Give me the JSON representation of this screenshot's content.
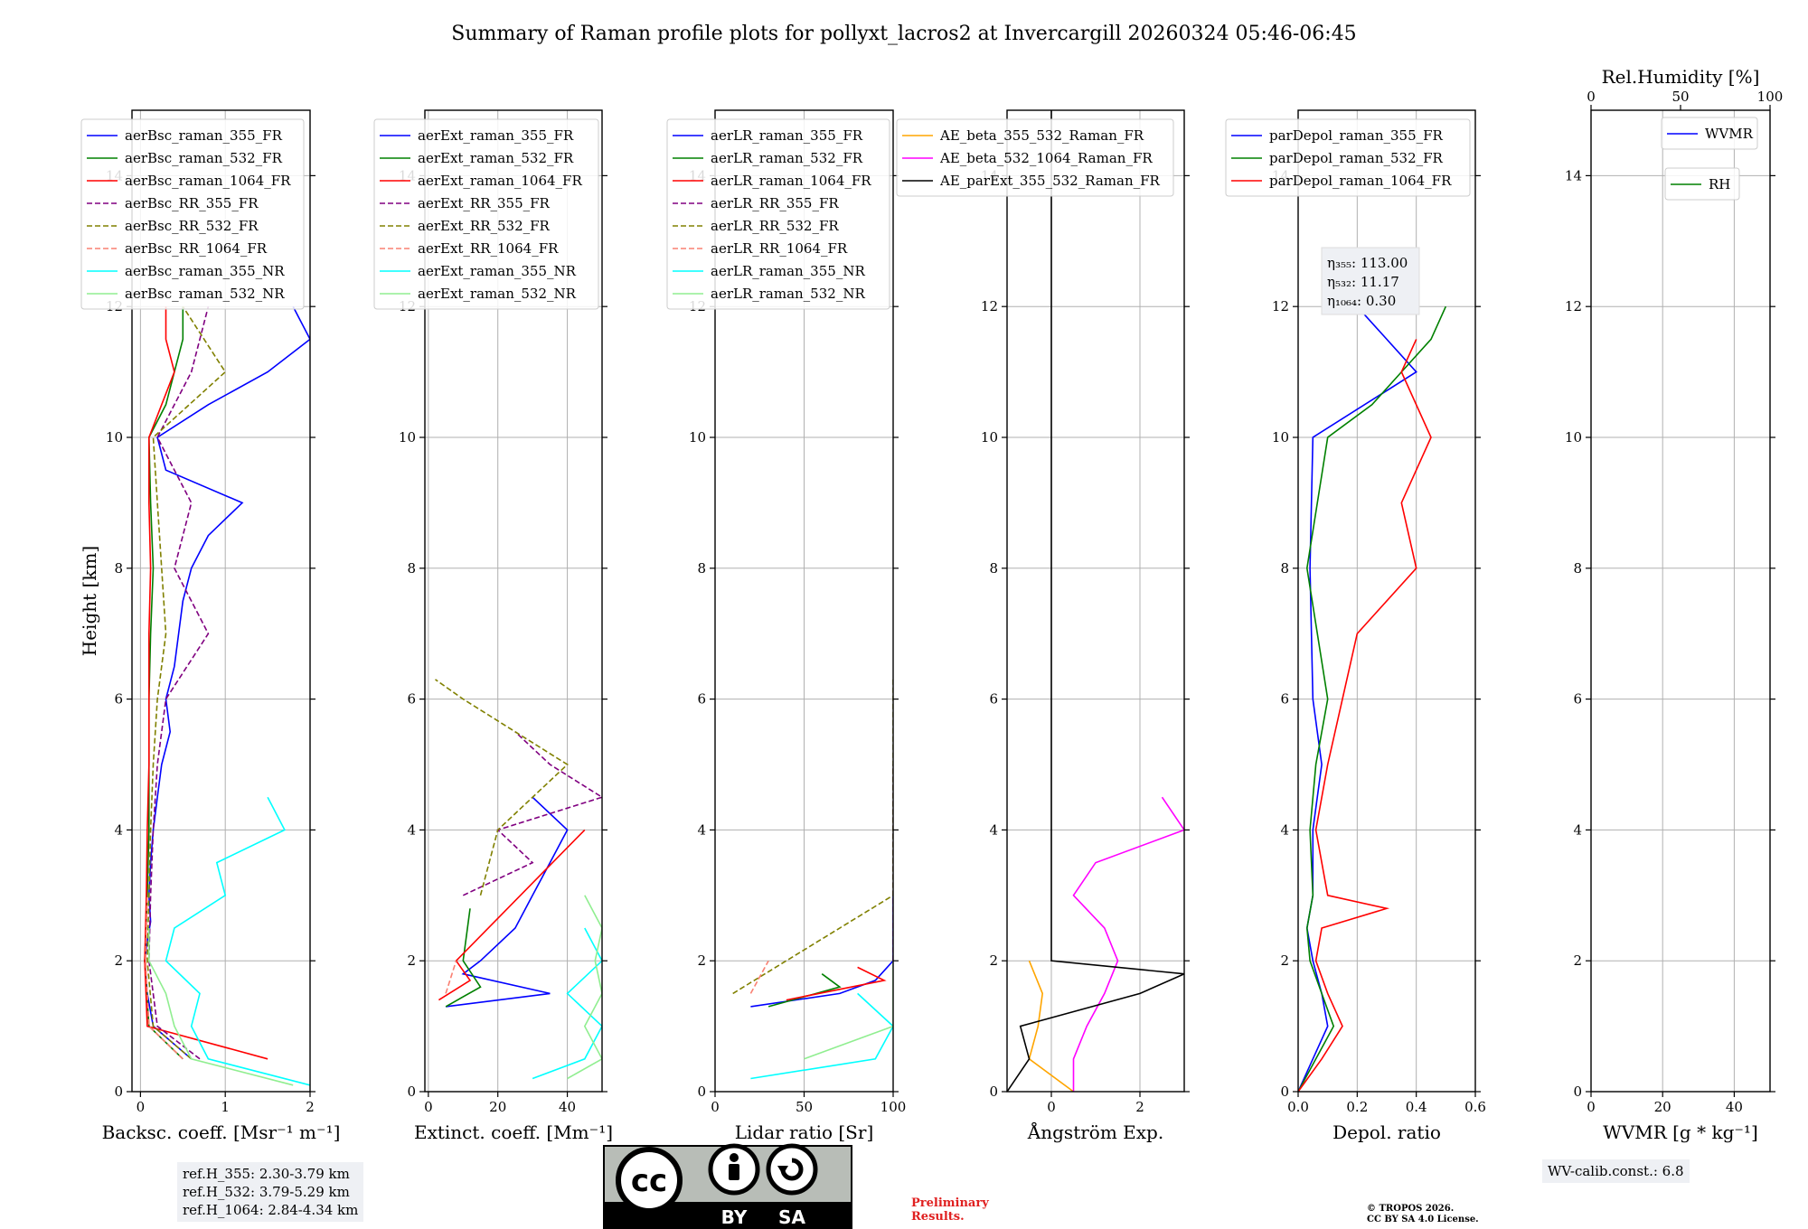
{
  "title": "Summary of Raman profile plots for pollyxt_lacros2 at Invercargill 20260324 05:46-06:45",
  "chart_data": [
    {
      "type": "line",
      "id": "bsc",
      "xlabel": "Backsc. coeff. [Msr⁻¹ m⁻¹]",
      "ylabel": "Height [km]",
      "xlim": [
        -0.1,
        2
      ],
      "ylim": [
        0,
        15
      ],
      "xticks": [
        0,
        1,
        2
      ],
      "yticks": [
        0,
        2,
        4,
        6,
        8,
        10,
        12,
        14
      ],
      "grid": true,
      "legend": [
        "aerBsc_raman_355_FR",
        "aerBsc_raman_532_FR",
        "aerBsc_raman_1064_FR",
        "aerBsc_RR_355_FR",
        "aerBsc_RR_532_FR",
        "aerBsc_RR_1064_FR",
        "aerBsc_raman_355_NR",
        "aerBsc_raman_532_NR"
      ],
      "series": [
        {
          "name": "aerBsc_raman_355_FR",
          "color": "#0000ff",
          "dash": "",
          "h": [
            0.5,
            1.0,
            1.5,
            2.0,
            2.3,
            2.6,
            3.0,
            3.5,
            4.0,
            4.5,
            5.0,
            5.5,
            6.0,
            6.5,
            7.0,
            7.5,
            8.0,
            8.5,
            9.0,
            9.5,
            10.0,
            10.5,
            11.0,
            11.5,
            12.0
          ],
          "v": [
            0.6,
            0.15,
            0.08,
            0.05,
            0.08,
            0.12,
            0.1,
            0.12,
            0.15,
            0.2,
            0.25,
            0.35,
            0.3,
            0.4,
            0.45,
            0.5,
            0.6,
            0.8,
            1.2,
            0.3,
            0.2,
            0.8,
            1.5,
            2.0,
            1.8
          ]
        },
        {
          "name": "aerBsc_raman_532_FR",
          "color": "#008000",
          "dash": "",
          "h": [
            0.5,
            1.0,
            2.0,
            3.0,
            4.0,
            5.0,
            6.0,
            7.0,
            8.0,
            9.0,
            10.0,
            10.5,
            11.0,
            11.5,
            12.0
          ],
          "v": [
            0.5,
            0.1,
            0.05,
            0.08,
            0.1,
            0.1,
            0.1,
            0.12,
            0.15,
            0.12,
            0.1,
            0.3,
            0.4,
            0.5,
            0.5
          ]
        },
        {
          "name": "aerBsc_raman_1064_FR",
          "color": "#ff0000",
          "dash": "",
          "h": [
            0.5,
            1.0,
            2.0,
            3.0,
            4.0,
            5.0,
            6.0,
            7.0,
            8.0,
            9.0,
            10.0,
            10.5,
            11.0,
            11.5,
            12.0
          ],
          "v": [
            1.5,
            0.08,
            0.05,
            0.07,
            0.08,
            0.1,
            0.1,
            0.1,
            0.12,
            0.1,
            0.1,
            0.25,
            0.4,
            0.3,
            0.3
          ]
        },
        {
          "name": "aerBsc_RR_355_FR",
          "color": "#800080",
          "dash": "6,3",
          "h": [
            0.5,
            1.0,
            2.0,
            3.0,
            4.0,
            5.0,
            6.0,
            7.0,
            8.0,
            9.0,
            10.0,
            11.0,
            12.0
          ],
          "v": [
            0.7,
            0.2,
            0.1,
            0.12,
            0.15,
            0.2,
            0.3,
            0.8,
            0.4,
            0.6,
            0.2,
            0.6,
            0.8
          ]
        },
        {
          "name": "aerBsc_RR_532_FR",
          "color": "#808000",
          "dash": "6,3",
          "h": [
            0.5,
            1.0,
            2.0,
            3.0,
            4.0,
            5.0,
            6.0,
            7.0,
            8.0,
            9.0,
            10.0,
            11.0,
            12.0
          ],
          "v": [
            0.6,
            0.15,
            0.08,
            0.1,
            0.12,
            0.15,
            0.2,
            0.3,
            0.25,
            0.2,
            0.15,
            1.0,
            0.5
          ]
        },
        {
          "name": "aerBsc_RR_1064_FR",
          "color": "#fa8072",
          "dash": "6,3",
          "h": [
            0.5,
            1.0,
            2.0,
            3.0
          ],
          "v": [
            0.5,
            0.1,
            0.06,
            0.08
          ]
        },
        {
          "name": "aerBsc_raman_355_NR",
          "color": "#00ffff",
          "dash": "",
          "h": [
            0.1,
            0.5,
            1.0,
            1.5,
            2.0,
            2.5,
            3.0,
            3.5,
            4.0,
            4.5
          ],
          "v": [
            2.0,
            0.8,
            0.6,
            0.7,
            0.3,
            0.4,
            1.0,
            0.9,
            1.7,
            1.5
          ]
        },
        {
          "name": "aerBsc_raman_532_NR",
          "color": "#90ee90",
          "dash": "",
          "h": [
            0.1,
            0.5,
            1.0,
            1.5,
            2.0,
            2.5
          ],
          "v": [
            1.8,
            0.6,
            0.4,
            0.3,
            0.1,
            0.1
          ]
        }
      ]
    },
    {
      "type": "line",
      "id": "ext",
      "xlabel": "Extinct. coeff. [Mm⁻¹]",
      "xlim": [
        -1,
        50
      ],
      "ylim": [
        0,
        15
      ],
      "xticks": [
        0,
        20,
        40
      ],
      "yticks": [
        0,
        2,
        4,
        6,
        8,
        10,
        12,
        14
      ],
      "grid": true,
      "legend": [
        "aerExt_raman_355_FR",
        "aerExt_raman_532_FR",
        "aerExt_raman_1064_FR",
        "aerExt_RR_355_FR",
        "aerExt_RR_532_FR",
        "aerExt_RR_1064_FR",
        "aerExt_raman_355_NR",
        "aerExt_raman_532_NR"
      ],
      "series": [
        {
          "name": "aerExt_raman_355_FR",
          "color": "#0000ff",
          "dash": "",
          "h": [
            1.3,
            1.5,
            1.8,
            2.0,
            2.5,
            3.0,
            3.5,
            4.0,
            4.5
          ],
          "v": [
            5,
            35,
            10,
            15,
            25,
            30,
            35,
            40,
            30
          ]
        },
        {
          "name": "aerExt_raman_532_FR",
          "color": "#008000",
          "dash": "",
          "h": [
            1.3,
            1.6,
            2.0,
            2.8
          ],
          "v": [
            5,
            15,
            10,
            12
          ]
        },
        {
          "name": "aerExt_raman_1064_FR",
          "color": "#ff0000",
          "dash": "",
          "h": [
            1.4,
            1.7,
            2.0,
            4.0
          ],
          "v": [
            3,
            12,
            8,
            45
          ]
        },
        {
          "name": "aerExt_RR_355_FR",
          "color": "#800080",
          "dash": "6,3",
          "h": [
            3.0,
            3.5,
            4.0,
            4.5,
            5.0,
            5.5
          ],
          "v": [
            10,
            30,
            20,
            50,
            35,
            25
          ]
        },
        {
          "name": "aerExt_RR_532_FR",
          "color": "#808000",
          "dash": "6,3",
          "h": [
            3.0,
            4.0,
            5.0,
            6.0,
            6.3
          ],
          "v": [
            15,
            20,
            40,
            10,
            2
          ]
        },
        {
          "name": "aerExt_RR_1064_FR",
          "color": "#fa8072",
          "dash": "6,3",
          "h": [
            1.5,
            2.0
          ],
          "v": [
            5,
            8
          ]
        },
        {
          "name": "aerExt_raman_355_NR",
          "color": "#00ffff",
          "dash": "",
          "h": [
            0.2,
            0.5,
            1.0,
            1.5,
            2.0,
            2.5
          ],
          "v": [
            30,
            45,
            50,
            40,
            50,
            45
          ]
        },
        {
          "name": "aerExt_raman_532_NR",
          "color": "#90ee90",
          "dash": "",
          "h": [
            0.2,
            0.5,
            1.0,
            1.5,
            2.0,
            2.5,
            3.0
          ],
          "v": [
            40,
            50,
            45,
            50,
            48,
            50,
            45
          ]
        }
      ]
    },
    {
      "type": "line",
      "id": "lr",
      "xlabel": "Lidar ratio [Sr]",
      "xlim": [
        0,
        100
      ],
      "ylim": [
        0,
        15
      ],
      "xticks": [
        0,
        50,
        100
      ],
      "yticks": [
        0,
        2,
        4,
        6,
        8,
        10,
        12,
        14
      ],
      "grid": true,
      "legend": [
        "aerLR_raman_355_FR",
        "aerLR_raman_532_FR",
        "aerLR_raman_1064_FR",
        "aerLR_RR_355_FR",
        "aerLR_RR_532_FR",
        "aerLR_RR_1064_FR",
        "aerLR_raman_355_NR",
        "aerLR_raman_532_NR"
      ],
      "series": [
        {
          "name": "aerLR_raman_355_FR",
          "color": "#0000ff",
          "dash": "",
          "h": [
            1.3,
            1.5,
            1.7,
            2.0,
            2.5,
            3.0
          ],
          "v": [
            20,
            70,
            90,
            100,
            100,
            100
          ]
        },
        {
          "name": "aerLR_raman_532_FR",
          "color": "#008000",
          "dash": "",
          "h": [
            1.3,
            1.6,
            1.8
          ],
          "v": [
            30,
            70,
            60
          ]
        },
        {
          "name": "aerLR_raman_1064_FR",
          "color": "#ff0000",
          "dash": "",
          "h": [
            1.4,
            1.7,
            1.9
          ],
          "v": [
            40,
            95,
            80
          ]
        },
        {
          "name": "aerLR_RR_355_FR",
          "color": "#800080",
          "dash": "6,3",
          "h": [
            2.0,
            3.0,
            4.0,
            5.0
          ],
          "v": [
            100,
            100,
            100,
            100
          ]
        },
        {
          "name": "aerLR_RR_532_FR",
          "color": "#808000",
          "dash": "6,3",
          "h": [
            1.5,
            3.0,
            5.0,
            6.3
          ],
          "v": [
            10,
            100,
            100,
            100
          ]
        },
        {
          "name": "aerLR_RR_1064_FR",
          "color": "#fa8072",
          "dash": "6,3",
          "h": [
            1.5,
            2.0
          ],
          "v": [
            20,
            30
          ]
        },
        {
          "name": "aerLR_raman_355_NR",
          "color": "#00ffff",
          "dash": "",
          "h": [
            0.2,
            0.5,
            1.0,
            1.5
          ],
          "v": [
            20,
            90,
            100,
            80
          ]
        },
        {
          "name": "aerLR_raman_532_NR",
          "color": "#90ee90",
          "dash": "",
          "h": [
            0.5,
            1.0,
            2.0
          ],
          "v": [
            50,
            100,
            100
          ]
        }
      ]
    },
    {
      "type": "line",
      "id": "ang",
      "xlabel": "Ångström Exp.",
      "xlim": [
        -1,
        3
      ],
      "ylim": [
        0,
        15
      ],
      "xticks": [
        0,
        2
      ],
      "yticks": [
        0,
        2,
        4,
        6,
        8,
        10,
        12,
        14
      ],
      "grid": true,
      "legend": [
        "AE_beta_355_532_Raman_FR",
        "AE_beta_532_1064_Raman_FR",
        "AE_parExt_355_532_Raman_FR"
      ],
      "series": [
        {
          "name": "AE_beta_355_532_Raman_FR",
          "color": "#ffa500",
          "dash": "",
          "h": [
            0.0,
            0.5,
            1.0,
            1.5,
            2.0
          ],
          "v": [
            0.5,
            -0.5,
            -0.3,
            -0.2,
            -0.5
          ]
        },
        {
          "name": "AE_beta_532_1064_Raman_FR",
          "color": "#ff00ff",
          "dash": "",
          "h": [
            0.0,
            0.5,
            1.0,
            1.5,
            2.0,
            2.5,
            3.0,
            3.5,
            4.0,
            4.5
          ],
          "v": [
            0.5,
            0.5,
            0.8,
            1.2,
            1.5,
            1.2,
            0.5,
            1.0,
            3.0,
            2.5
          ]
        },
        {
          "name": "AE_parExt_355_532_Raman_FR",
          "color": "#000000",
          "dash": "",
          "h": [
            0.0,
            0.5,
            1.0,
            1.5,
            1.8,
            2.0,
            5.5,
            6.0,
            15.0
          ],
          "v": [
            -1,
            -0.5,
            -0.7,
            2.0,
            3.0,
            0.0,
            0.0,
            0.0,
            0.0
          ]
        }
      ]
    },
    {
      "type": "line",
      "id": "dep",
      "xlabel": "Depol. ratio",
      "xlim": [
        0,
        0.6
      ],
      "ylim": [
        0,
        15
      ],
      "xticks": [
        0.0,
        0.2,
        0.4,
        0.6
      ],
      "yticks": [
        0,
        2,
        4,
        6,
        8,
        10,
        12,
        14
      ],
      "grid": true,
      "legend": [
        "parDepol_raman_355_FR",
        "parDepol_raman_532_FR",
        "parDepol_raman_1064_FR"
      ],
      "annotation": {
        "lines": [
          "η₃₅₅: 113.00",
          "η₅₃₂: 11.17",
          "η₁₀₆₄: 0.30"
        ]
      },
      "series": [
        {
          "name": "parDepol_raman_355_FR",
          "color": "#0000ff",
          "dash": "",
          "h": [
            0.0,
            0.5,
            1.0,
            1.5,
            2.0,
            2.5,
            3.0,
            4.0,
            5.0,
            6.0,
            8.0,
            10.0,
            11.0,
            11.5,
            12.0
          ],
          "v": [
            0.0,
            0.05,
            0.1,
            0.08,
            0.05,
            0.03,
            0.05,
            0.05,
            0.08,
            0.05,
            0.04,
            0.05,
            0.4,
            0.3,
            0.2
          ]
        },
        {
          "name": "parDepol_raman_532_FR",
          "color": "#008000",
          "dash": "",
          "h": [
            0.0,
            0.5,
            1.0,
            1.5,
            2.0,
            2.5,
            3.0,
            4.0,
            5.0,
            6.0,
            8.0,
            10.0,
            10.5,
            11.0,
            11.5,
            12.0
          ],
          "v": [
            0.0,
            0.06,
            0.12,
            0.08,
            0.04,
            0.03,
            0.05,
            0.04,
            0.06,
            0.1,
            0.03,
            0.1,
            0.25,
            0.35,
            0.45,
            0.5
          ]
        },
        {
          "name": "parDepol_raman_1064_FR",
          "color": "#ff0000",
          "dash": "",
          "h": [
            0.0,
            0.5,
            1.0,
            1.5,
            2.0,
            2.5,
            2.8,
            3.0,
            4.0,
            5.0,
            6.0,
            7.0,
            8.0,
            9.0,
            10.0,
            11.0,
            11.5
          ],
          "v": [
            0.0,
            0.08,
            0.15,
            0.1,
            0.06,
            0.08,
            0.3,
            0.1,
            0.06,
            0.1,
            0.15,
            0.2,
            0.4,
            0.35,
            0.45,
            0.35,
            0.4
          ]
        }
      ]
    },
    {
      "type": "line",
      "id": "wv",
      "xlabel": "WVMR [g * kg⁻¹]",
      "xlim": [
        0,
        50
      ],
      "ylim": [
        0,
        15
      ],
      "xticks": [
        0,
        20,
        40
      ],
      "yticks": [
        0,
        2,
        4,
        6,
        8,
        10,
        12,
        14
      ],
      "top_xlabel": "Rel.Humidity [%]",
      "top_xlim": [
        0,
        100
      ],
      "top_xticks": [
        0,
        50,
        100
      ],
      "grid": true,
      "legend": [
        "WVMR"
      ],
      "legend2": [
        "RH"
      ],
      "series": [
        {
          "name": "WVMR",
          "color": "#0000ff",
          "dash": "",
          "h": [],
          "v": []
        },
        {
          "name": "RH",
          "color": "#008000",
          "dash": "",
          "h": [],
          "v": []
        }
      ]
    }
  ],
  "info": {
    "ref_h": [
      "ref.H_355: 2.30-3.79 km",
      "ref.H_532: 3.79-5.29 km",
      "ref.H_1064: 2.84-4.34 km"
    ],
    "wv_calib": "WV-calib.const.: 6.8"
  },
  "license": {
    "cc": "cc",
    "by": "BY",
    "sa": "SA",
    "preliminary_lines": [
      "Preliminary",
      "Results."
    ],
    "copyright_lines": [
      "© TROPOS 2026.",
      "CC BY SA 4.0 License."
    ]
  }
}
